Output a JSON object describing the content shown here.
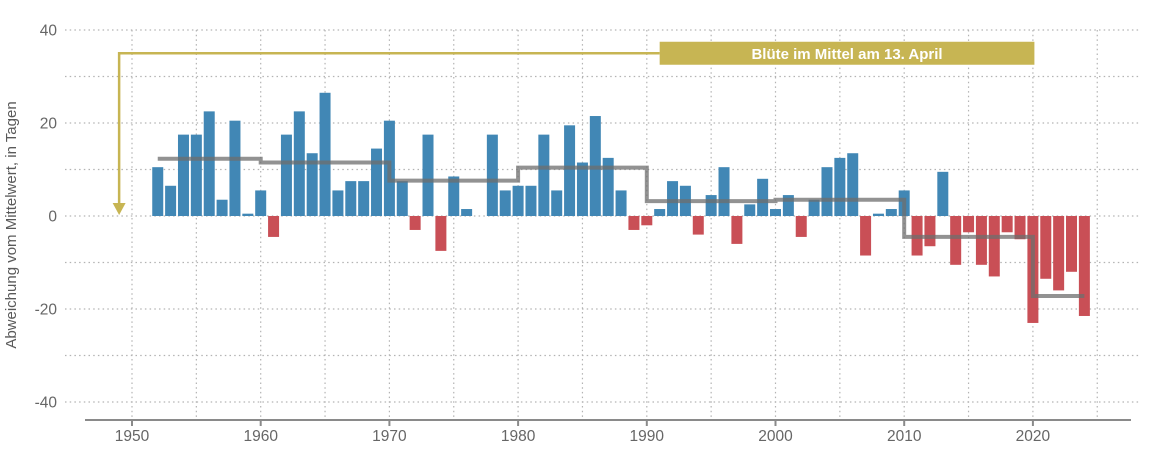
{
  "chart_data": {
    "type": "bar",
    "ylabel": "Abweichung vom Mittelwert, in Tagen",
    "y_ticks": [
      40,
      20,
      0,
      -20,
      -40
    ],
    "y_gridlines": [
      40,
      30,
      20,
      10,
      0,
      -10,
      -20,
      -30,
      -40
    ],
    "x_ticks": [
      1950,
      1960,
      1970,
      1980,
      1990,
      2000,
      2010,
      2020
    ],
    "x_gridlines": [
      1950,
      1955,
      1960,
      1965,
      1970,
      1975,
      1980,
      1985,
      1990,
      1995,
      2000,
      2005,
      2010,
      2015,
      2020,
      2025
    ],
    "ylim": [
      -45,
      45
    ],
    "grid": true,
    "legend": "none",
    "years": [
      1952,
      1953,
      1954,
      1955,
      1956,
      1957,
      1958,
      1959,
      1960,
      1961,
      1962,
      1963,
      1964,
      1965,
      1966,
      1967,
      1968,
      1969,
      1970,
      1971,
      1972,
      1973,
      1974,
      1975,
      1976,
      1977,
      1978,
      1979,
      1980,
      1981,
      1982,
      1983,
      1984,
      1985,
      1986,
      1987,
      1988,
      1989,
      1990,
      1991,
      1992,
      1993,
      1994,
      1995,
      1996,
      1997,
      1998,
      1999,
      2000,
      2001,
      2002,
      2003,
      2004,
      2005,
      2006,
      2007,
      2008,
      2009,
      2010,
      2011,
      2012,
      2013,
      2014,
      2015,
      2016,
      2017,
      2018,
      2019,
      2020,
      2021,
      2022,
      2023,
      2024
    ],
    "values": [
      10.5,
      6.5,
      17.5,
      17.5,
      22.5,
      3.5,
      20.5,
      0.5,
      5.5,
      -4.5,
      17.5,
      22.5,
      13.5,
      26.5,
      5.5,
      7.5,
      7.5,
      14.5,
      20.5,
      7.5,
      -3,
      17.5,
      -7.5,
      8.5,
      1.5,
      null,
      17.5,
      5.5,
      6.5,
      6.5,
      17.5,
      5.5,
      19.5,
      11.5,
      21.5,
      12.5,
      5.5,
      -3,
      -2,
      1.5,
      7.5,
      6.5,
      -4,
      4.5,
      10.5,
      -6,
      2.5,
      8,
      1.5,
      4.5,
      -4.5,
      3.5,
      10.5,
      12.5,
      13.5,
      -8.5,
      0.5,
      1.5,
      5.5,
      -8.5,
      -6.5,
      9.5,
      -10.5,
      -3.5,
      -10.5,
      -13,
      -3.5,
      -5,
      -23,
      -13.5,
      -16,
      -12,
      -21.5
    ],
    "decade_means": [
      {
        "from": 1952,
        "to": 1960,
        "value": 12.3
      },
      {
        "from": 1960,
        "to": 1970,
        "value": 11.5
      },
      {
        "from": 1970,
        "to": 1980,
        "value": 7.6
      },
      {
        "from": 1980,
        "to": 1990,
        "value": 10.4
      },
      {
        "from": 1990,
        "to": 2000,
        "value": 3.2
      },
      {
        "from": 2000,
        "to": 2010,
        "value": 3.5
      },
      {
        "from": 2010,
        "to": 2020,
        "value": -4.5
      },
      {
        "from": 2020,
        "to": 2024,
        "value": -17.2
      }
    ],
    "annotation": {
      "label": "Blüte im Mittel am 13. April",
      "line_value": 35,
      "arrow_year": 1949,
      "arrow_to_value": 0,
      "banner_from_year": 1991,
      "banner_to_year": 2020
    },
    "colors": {
      "positive": "#4187b5",
      "negative": "#c94f56",
      "mean_line": "#6e6e6e",
      "annotation": "#c7b553",
      "banner_text": "#ffffff",
      "axis": "#8a8a8a",
      "text": "#666666",
      "ylabel_text": "#5a5a5a",
      "grid": "#b3b3b3"
    }
  }
}
